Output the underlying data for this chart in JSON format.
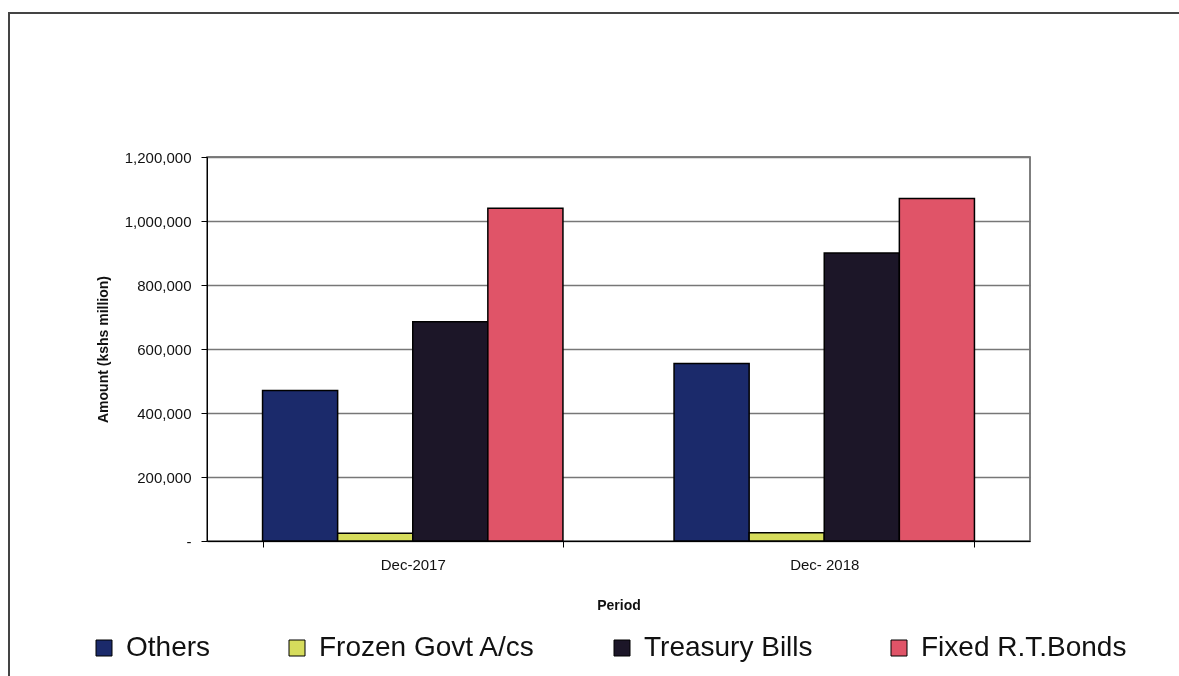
{
  "chart_data": {
    "type": "bar",
    "xlabel": "Period",
    "ylabel": "Amount (kshs million)",
    "categories": [
      "Dec-2017",
      "Dec- 2018"
    ],
    "series": [
      {
        "name": "Others",
        "color": "#1b2a6b",
        "values": [
          470000,
          555000
        ]
      },
      {
        "name": "Frozen Govt A/cs",
        "color": "#d6dc5c",
        "values": [
          24000,
          26000
        ]
      },
      {
        "name": "Treasury Bills",
        "color": "#1c1628",
        "values": [
          685000,
          900000
        ]
      },
      {
        "name": "Fixed R.T.Bonds",
        "color": "#e05468",
        "values": [
          1040000,
          1070000
        ]
      }
    ],
    "ylim": [
      0,
      1200000
    ],
    "yticks": [
      {
        "value": 0,
        "label": "-"
      },
      {
        "value": 200000,
        "label": "200,000"
      },
      {
        "value": 400000,
        "label": "400,000"
      },
      {
        "value": 600000,
        "label": "600,000"
      },
      {
        "value": 800000,
        "label": "800,000"
      },
      {
        "value": 1000000,
        "label": "1,000,000"
      },
      {
        "value": 1200000,
        "label": "1,200,000"
      }
    ],
    "grid": "y",
    "legend": "bottom"
  }
}
